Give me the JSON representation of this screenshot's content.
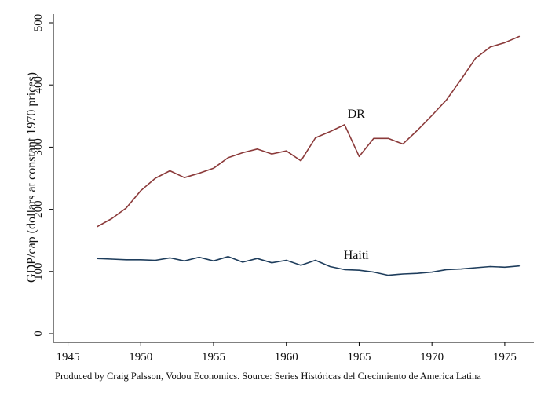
{
  "chart_data": {
    "type": "line",
    "title": "",
    "xlabel": "",
    "ylabel": "GDP/cap (dollars at constant 1970 prices)",
    "xlim": [
      1944,
      1977
    ],
    "ylim": [
      0,
      500
    ],
    "x_ticks": [
      1945,
      1950,
      1955,
      1960,
      1965,
      1970,
      1975
    ],
    "y_ticks": [
      0,
      100,
      200,
      300,
      400,
      500
    ],
    "grid": false,
    "legend": "none",
    "note": "Produced by Craig Palsson, Vodou Economics. Source: Series Históricas del Crecimiento de America Latina",
    "x": [
      1947,
      1948,
      1949,
      1950,
      1951,
      1952,
      1953,
      1954,
      1955,
      1956,
      1957,
      1958,
      1959,
      1960,
      1961,
      1962,
      1963,
      1964,
      1965,
      1966,
      1967,
      1968,
      1969,
      1970,
      1971,
      1972,
      1973,
      1974,
      1975,
      1976
    ],
    "series": [
      {
        "name": "DR",
        "color": "#8b3a3a",
        "label_at": [
          1964.8,
          347
        ],
        "values": [
          172,
          185,
          202,
          230,
          250,
          262,
          251,
          258,
          266,
          283,
          291,
          297,
          289,
          294,
          278,
          315,
          325,
          336,
          285,
          314,
          314,
          305,
          327,
          351,
          376,
          409,
          443,
          461,
          468,
          478
        ]
      },
      {
        "name": "Haiti",
        "color": "#1e3d5c",
        "label_at": [
          1964.8,
          120
        ],
        "values": [
          121,
          120,
          119,
          119,
          118,
          122,
          117,
          123,
          117,
          124,
          115,
          121,
          114,
          118,
          110,
          118,
          108,
          103,
          102,
          99,
          94,
          96,
          97,
          99,
          103,
          104,
          106,
          108,
          107,
          109
        ]
      }
    ]
  }
}
